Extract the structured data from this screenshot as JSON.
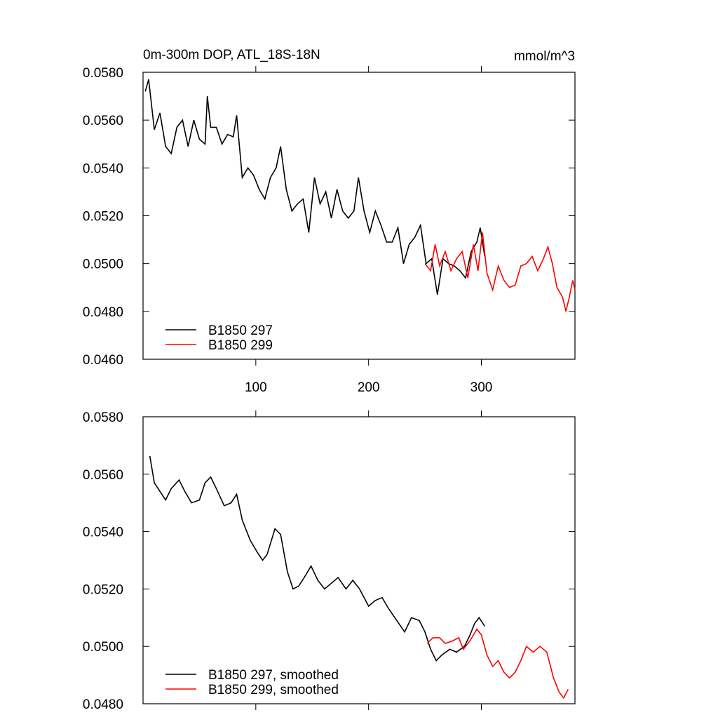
{
  "chart_data": [
    {
      "type": "line",
      "title": "0m-300m DOP, ATL_18S-18N",
      "units": "mmol/m^3",
      "xlim": [
        0,
        383
      ],
      "xticks": [
        100,
        200,
        300
      ],
      "ylim": [
        0.046,
        0.058
      ],
      "yticks": [
        {
          "value": 0.046,
          "label": "0.0460"
        },
        {
          "value": 0.048,
          "label": "0.0480"
        },
        {
          "value": 0.05,
          "label": "0.0500"
        },
        {
          "value": 0.052,
          "label": "0.0520"
        },
        {
          "value": 0.054,
          "label": "0.0540"
        },
        {
          "value": 0.056,
          "label": "0.0560"
        },
        {
          "value": 0.058,
          "label": "0.0580"
        }
      ],
      "legend": "lower left",
      "series": [
        {
          "name": "B1850 297",
          "color": "#000000",
          "x": [
            2,
            5,
            10,
            15,
            20,
            25,
            30,
            35,
            40,
            45,
            50,
            55,
            57,
            60,
            65,
            70,
            75,
            80,
            83,
            88,
            93,
            98,
            103,
            108,
            113,
            118,
            122,
            127,
            132,
            137,
            142,
            147,
            152,
            157,
            162,
            167,
            172,
            177,
            182,
            187,
            191,
            196,
            201,
            206,
            211,
            216,
            221,
            226,
            231,
            236,
            241,
            246,
            251,
            256,
            261,
            266,
            271,
            276,
            281,
            286,
            291,
            296,
            299,
            303
          ],
          "values": [
            0.0572,
            0.0577,
            0.0556,
            0.0563,
            0.0549,
            0.0546,
            0.0557,
            0.056,
            0.0549,
            0.056,
            0.0552,
            0.055,
            0.057,
            0.0557,
            0.0557,
            0.055,
            0.0554,
            0.0553,
            0.0562,
            0.0536,
            0.054,
            0.0537,
            0.0531,
            0.0527,
            0.0536,
            0.054,
            0.0549,
            0.0531,
            0.0522,
            0.0525,
            0.0527,
            0.0513,
            0.0536,
            0.0525,
            0.053,
            0.0519,
            0.0531,
            0.0522,
            0.0519,
            0.0522,
            0.0536,
            0.0522,
            0.0513,
            0.0522,
            0.0516,
            0.0509,
            0.0509,
            0.0515,
            0.05,
            0.0508,
            0.0511,
            0.0516,
            0.05,
            0.0502,
            0.0487,
            0.0502,
            0.05,
            0.0499,
            0.0497,
            0.0494,
            0.0505,
            0.0509,
            0.0515,
            0.0503
          ]
        },
        {
          "name": "B1850 299",
          "color": "#ff0000",
          "x": [
            250,
            255,
            259,
            263,
            268,
            273,
            278,
            283,
            288,
            293,
            297,
            301,
            305,
            310,
            315,
            320,
            325,
            330,
            335,
            340,
            345,
            350,
            355,
            359,
            363,
            367,
            372,
            375,
            378,
            381,
            383
          ],
          "values": [
            0.05,
            0.0497,
            0.0508,
            0.0499,
            0.0505,
            0.0497,
            0.0502,
            0.0505,
            0.0494,
            0.0508,
            0.0497,
            0.0513,
            0.0496,
            0.0489,
            0.0499,
            0.0493,
            0.049,
            0.0491,
            0.0499,
            0.05,
            0.0503,
            0.0497,
            0.0502,
            0.0507,
            0.05,
            0.049,
            0.0486,
            0.048,
            0.0486,
            0.0493,
            0.0489
          ]
        }
      ]
    },
    {
      "type": "line",
      "xlim": [
        0,
        383
      ],
      "ylim": [
        0.048,
        0.058
      ],
      "yticks": [
        {
          "value": 0.048,
          "label": "0.0480"
        },
        {
          "value": 0.05,
          "label": "0.0500"
        },
        {
          "value": 0.052,
          "label": "0.0520"
        },
        {
          "value": 0.054,
          "label": "0.0540"
        },
        {
          "value": 0.056,
          "label": "0.0560"
        },
        {
          "value": 0.058,
          "label": "0.0580"
        }
      ],
      "legend": "lower left",
      "series": [
        {
          "name": "B1850 297, smoothed",
          "color": "#000000",
          "x": [
            6,
            10,
            15,
            20,
            25,
            32,
            37,
            43,
            50,
            55,
            60,
            65,
            72,
            78,
            83,
            88,
            95,
            101,
            106,
            110,
            117,
            122,
            128,
            133,
            138,
            143,
            149,
            155,
            161,
            167,
            173,
            180,
            186,
            192,
            200,
            206,
            212,
            218,
            225,
            232,
            238,
            245,
            250,
            255,
            260,
            265,
            272,
            278,
            285,
            290,
            294,
            298,
            303
          ],
          "values": [
            0.05663,
            0.0557,
            0.0554,
            0.0551,
            0.0555,
            0.0558,
            0.0554,
            0.055,
            0.0551,
            0.0557,
            0.0559,
            0.0555,
            0.0549,
            0.055,
            0.0553,
            0.0544,
            0.0537,
            0.0533,
            0.053,
            0.0532,
            0.0541,
            0.0539,
            0.0526,
            0.052,
            0.0521,
            0.0524,
            0.0528,
            0.0523,
            0.052,
            0.0522,
            0.0524,
            0.052,
            0.0523,
            0.052,
            0.0514,
            0.0516,
            0.0517,
            0.0513,
            0.0509,
            0.0505,
            0.051,
            0.0509,
            0.0505,
            0.0499,
            0.0495,
            0.0497,
            0.0499,
            0.0498,
            0.05,
            0.0504,
            0.0508,
            0.051,
            0.0507
          ]
        },
        {
          "name": "B1850 299, smoothed",
          "color": "#ff0000",
          "x": [
            252,
            257,
            263,
            268,
            275,
            280,
            284,
            290,
            296,
            300,
            305,
            310,
            315,
            320,
            325,
            330,
            335,
            340,
            346,
            352,
            358,
            364,
            369,
            373,
            377
          ],
          "values": [
            0.0501,
            0.0503,
            0.0503,
            0.0501,
            0.0502,
            0.0503,
            0.0499,
            0.0502,
            0.0506,
            0.0504,
            0.0497,
            0.0493,
            0.0495,
            0.0491,
            0.0489,
            0.0491,
            0.0495,
            0.05,
            0.0498,
            0.05,
            0.0498,
            0.0489,
            0.0484,
            0.0482,
            0.0485
          ]
        }
      ]
    }
  ]
}
